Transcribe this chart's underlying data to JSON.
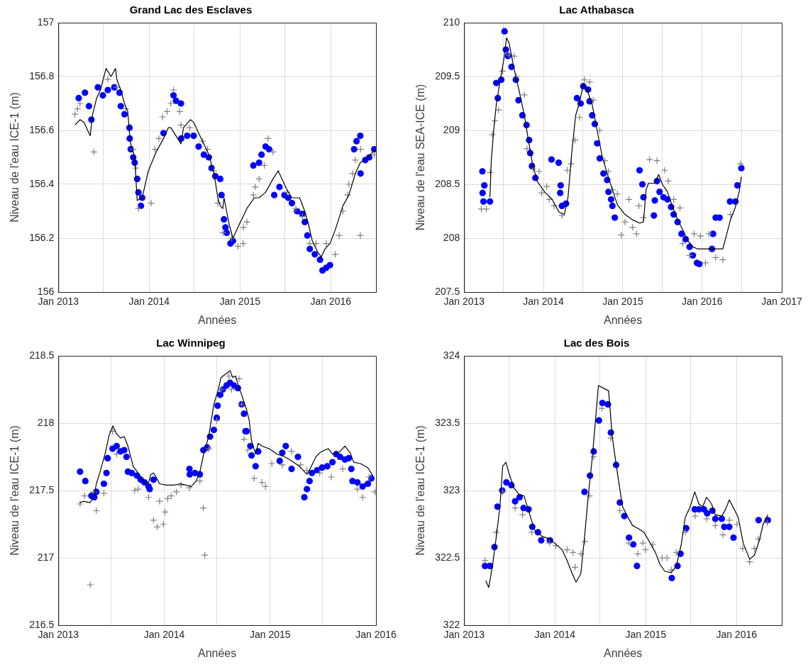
{
  "chart_data": [
    {
      "type": "scatter",
      "title": "Grand Lac des Esclaves",
      "xlabel": "Années",
      "ylabel": "Niveau de l'eau ICE-1 (m)",
      "grid": true,
      "xlim": [
        "2013-01-01",
        "2016-07-01"
      ],
      "xticks": [
        {
          "value": "2013-01-01",
          "label": "Jan 2013"
        },
        {
          "value": "2013-07-01",
          "label": null
        },
        {
          "value": "2014-01-01",
          "label": "Jan 2014"
        },
        {
          "value": "2014-07-01",
          "label": null
        },
        {
          "value": "2015-01-01",
          "label": "Jan 2015"
        },
        {
          "value": "2015-07-01",
          "label": null
        },
        {
          "value": "2016-01-01",
          "label": "Jan 2016"
        },
        {
          "value": "2016-07-01",
          "label": null
        }
      ],
      "ylim": [
        156,
        157
      ],
      "yticks": [
        156,
        156.2,
        156.4,
        156.6,
        156.8,
        157
      ],
      "series": [
        {
          "type": "line",
          "color": "#000000",
          "marker": "none",
          "x": [
            "2013-03-09",
            "2013-03-29",
            "2013-04-14",
            "2013-05-09",
            "2013-05-19",
            "2013-06-04",
            "2013-06-19",
            "2013-07-12",
            "2013-08-01",
            "2013-08-19",
            "2013-08-24",
            "2013-09-09",
            "2013-09-24",
            "2013-10-07",
            "2013-10-14",
            "2013-10-19",
            "2013-11-04",
            "2013-11-14",
            "2013-12-04",
            "2013-12-29",
            "2014-01-29",
            "2014-02-28",
            "2014-03-19",
            "2014-03-29",
            "2014-04-19",
            "2014-05-09",
            "2014-05-19",
            "2014-06-16",
            "2014-06-29",
            "2014-07-19",
            "2014-08-09",
            "2014-08-29",
            "2014-09-19",
            "2014-10-04",
            "2014-10-14",
            "2014-10-24",
            "2014-10-29",
            "2014-11-19",
            "2014-12-04",
            "2014-12-29",
            "2015-01-29",
            "2015-02-28",
            "2015-03-19",
            "2015-04-14",
            "2015-05-14",
            "2015-06-04",
            "2015-06-19",
            "2015-07-09",
            "2015-07-29",
            "2015-08-29",
            "2015-09-19",
            "2015-10-04",
            "2015-10-19",
            "2015-11-09",
            "2015-11-24",
            "2015-12-09",
            "2015-12-29",
            "2016-01-19",
            "2016-02-19",
            "2016-03-14",
            "2016-04-09",
            "2016-04-29",
            "2016-05-29",
            "2016-06-29"
          ],
          "values": [
            156.62,
            156.64,
            156.63,
            156.58,
            156.66,
            156.72,
            156.75,
            156.83,
            156.8,
            156.83,
            156.79,
            156.75,
            156.7,
            156.67,
            156.59,
            156.55,
            156.5,
            156.34,
            156.35,
            156.45,
            156.52,
            156.57,
            156.61,
            156.61,
            156.58,
            156.55,
            156.61,
            156.64,
            156.63,
            156.59,
            156.55,
            156.51,
            156.44,
            156.35,
            156.32,
            156.31,
            156.35,
            156.25,
            156.2,
            156.25,
            156.31,
            156.35,
            156.35,
            156.37,
            156.42,
            156.45,
            156.42,
            156.38,
            156.35,
            156.35,
            156.3,
            156.25,
            156.19,
            156.15,
            156.13,
            156.16,
            156.18,
            156.23,
            156.32,
            156.36,
            156.44,
            156.48,
            156.5,
            156.53
          ]
        },
        {
          "type": "scatter",
          "color": "#0000ff",
          "marker": "circle",
          "x": [
            "2013-03-24",
            "2013-04-18",
            "2013-05-04",
            "2013-05-14",
            "2013-06-09",
            "2013-06-29",
            "2013-07-19",
            "2013-08-14",
            "2013-09-04",
            "2013-09-09",
            "2013-09-24",
            "2013-10-14",
            "2013-10-15",
            "2013-10-19",
            "2013-10-29",
            "2013-11-04",
            "2013-11-14",
            "2013-11-19",
            "2013-11-29",
            "2013-12-04",
            "2014-02-28",
            "2014-04-09",
            "2014-04-19",
            "2014-05-09",
            "2014-05-10",
            "2014-06-03",
            "2014-06-29",
            "2014-07-19",
            "2014-08-09",
            "2014-08-29",
            "2014-09-09",
            "2014-09-24",
            "2014-10-14",
            "2014-10-19",
            "2014-10-29",
            "2014-11-04",
            "2014-11-09",
            "2014-11-24",
            "2014-12-04",
            "2015-02-24",
            "2015-03-19",
            "2015-03-29",
            "2015-04-14",
            "2015-04-28",
            "2015-05-19",
            "2015-06-09",
            "2015-06-29",
            "2015-07-14",
            "2015-07-29",
            "2015-08-19",
            "2015-09-09",
            "2015-09-19",
            "2015-09-29",
            "2015-10-09",
            "2015-10-29",
            "2015-11-19",
            "2015-11-29",
            "2015-12-14",
            "2015-12-29",
            "2016-04-04",
            "2016-04-14",
            "2016-04-29",
            "2016-04-30",
            "2016-05-19",
            "2016-06-04",
            "2016-06-24"
          ],
          "values": [
            156.72,
            156.74,
            156.69,
            156.64,
            156.76,
            156.73,
            156.75,
            156.76,
            156.74,
            156.69,
            156.66,
            156.61,
            156.57,
            156.53,
            156.5,
            156.48,
            156.42,
            156.37,
            156.32,
            156.35,
            156.59,
            156.73,
            156.71,
            156.7,
            156.57,
            156.58,
            156.58,
            156.54,
            156.51,
            156.5,
            156.46,
            156.43,
            156.42,
            156.36,
            156.27,
            156.24,
            156.22,
            156.18,
            156.19,
            156.47,
            156.48,
            156.51,
            156.54,
            156.53,
            156.36,
            156.39,
            156.36,
            156.35,
            156.33,
            156.3,
            156.29,
            156.26,
            156.21,
            156.16,
            156.14,
            156.12,
            156.08,
            156.09,
            156.1,
            156.53,
            156.56,
            156.58,
            156.44,
            156.49,
            156.5,
            156.53
          ]
        },
        {
          "type": "scatter",
          "color": "#808080",
          "marker": "cross",
          "x": [
            "2013-03-09",
            "2013-03-19",
            "2013-03-29",
            "2013-05-24",
            "2013-07-19",
            "2013-08-24",
            "2013-09-29",
            "2013-10-29",
            "2013-11-09",
            "2013-11-19",
            "2014-01-09",
            "2014-01-24",
            "2014-02-09",
            "2014-02-24",
            "2014-03-14",
            "2014-03-29",
            "2014-04-09",
            "2014-05-04",
            "2014-05-09",
            "2014-06-13",
            "2014-08-03",
            "2014-08-24",
            "2014-09-19",
            "2014-10-04",
            "2014-10-24",
            "2014-11-29",
            "2014-12-24",
            "2015-01-14",
            "2015-01-15",
            "2015-01-29",
            "2015-02-24",
            "2015-03-03",
            "2015-03-19",
            "2015-04-09",
            "2015-04-24",
            "2015-05-14",
            "2015-07-09",
            "2015-08-14",
            "2015-09-09",
            "2015-10-09",
            "2015-11-03",
            "2015-12-14",
            "2016-01-19",
            "2016-02-04",
            "2016-02-19",
            "2016-03-09",
            "2016-03-14",
            "2016-03-29",
            "2016-04-09",
            "2016-04-29",
            "2016-04-30",
            "2016-06-24"
          ],
          "values": [
            156.66,
            156.68,
            156.7,
            156.52,
            156.79,
            156.76,
            156.68,
            156.53,
            156.46,
            156.31,
            156.33,
            156.53,
            156.57,
            156.65,
            156.67,
            156.7,
            156.75,
            156.67,
            156.62,
            156.61,
            156.56,
            156.53,
            156.45,
            156.33,
            156.22,
            156.2,
            156.17,
            156.18,
            156.24,
            156.26,
            156.36,
            156.39,
            156.42,
            156.47,
            156.57,
            156.52,
            156.37,
            156.31,
            156.28,
            156.18,
            156.18,
            156.18,
            156.14,
            156.21,
            156.3,
            156.36,
            156.4,
            156.44,
            156.49,
            156.21,
            156.53,
            156.51
          ]
        }
      ]
    },
    {
      "type": "scatter",
      "title": "Lac Athabasca",
      "xlabel": "Années",
      "ylabel": "Niveau de l'eau SEA-ICE (m)",
      "grid": true,
      "xlim": [
        "2013-01-01",
        "2017-01-01"
      ],
      "xticks": [
        {
          "value": "2013-01-01",
          "label": "Jan 2013"
        },
        {
          "value": "2013-07-01",
          "label": null
        },
        {
          "value": "2014-01-01",
          "label": "Jan 2014"
        },
        {
          "value": "2014-07-01",
          "label": null
        },
        {
          "value": "2015-01-01",
          "label": "Jan 2015"
        },
        {
          "value": "2015-07-01",
          "label": null
        },
        {
          "value": "2016-01-01",
          "label": "Jan 2016"
        },
        {
          "value": "2016-07-01",
          "label": null
        },
        {
          "value": "2017-01-01",
          "label": "Jan 2017"
        }
      ],
      "ylim": [
        207.5,
        210
      ],
      "yticks": [
        207.5,
        208,
        208.5,
        209,
        209.5,
        210
      ],
      "series": [
        {
          "type": "line",
          "color": "#000000",
          "marker": "none",
          "x": [
            "2013-04-30",
            "2013-05-06",
            "2013-05-17",
            "2013-05-29",
            "2013-06-16",
            "2013-07-03",
            "2013-07-15",
            "2013-07-27",
            "2013-08-19",
            "2013-09-12",
            "2013-10-05",
            "2013-10-22",
            "2013-11-09",
            "2013-12-02",
            "2014-01-06",
            "2014-02-10",
            "2014-03-14",
            "2014-04-07",
            "2014-04-24",
            "2014-05-11",
            "2014-05-29",
            "2014-06-16",
            "2014-07-03",
            "2014-07-20",
            "2014-08-13",
            "2014-09-05",
            "2014-09-28",
            "2014-10-21",
            "2014-11-14",
            "2014-12-07",
            "2015-01-11",
            "2015-02-15",
            "2015-03-19",
            "2015-04-06",
            "2015-04-18",
            "2015-04-29",
            "2015-05-28",
            "2015-06-15",
            "2015-07-02",
            "2015-07-25",
            "2015-08-18",
            "2015-09-10",
            "2015-10-03",
            "2015-10-26",
            "2015-11-19",
            "2015-12-11",
            "2016-01-27",
            "2016-04-05",
            "2016-04-22",
            "2016-05-10",
            "2016-06-02",
            "2016-06-19",
            "2016-06-29"
          ],
          "values": [
            208.38,
            208.72,
            209.0,
            209.24,
            209.47,
            209.66,
            209.86,
            209.81,
            209.57,
            209.36,
            209.14,
            208.93,
            208.72,
            208.53,
            208.43,
            208.36,
            208.24,
            208.22,
            208.38,
            208.79,
            209.14,
            209.26,
            209.43,
            209.38,
            209.24,
            209.0,
            208.76,
            208.6,
            208.45,
            208.31,
            208.22,
            208.17,
            208.14,
            208.15,
            208.45,
            208.51,
            208.51,
            208.59,
            208.5,
            208.43,
            208.29,
            208.17,
            208.08,
            207.98,
            207.92,
            207.9,
            207.9,
            207.9,
            208.03,
            208.17,
            208.29,
            208.43,
            208.57
          ]
        },
        {
          "type": "scatter",
          "color": "#0000ff",
          "marker": "circle",
          "x": [
            "2013-03-26",
            "2013-03-27",
            "2013-04-04",
            "2013-03-31",
            "2013-04-30",
            "2013-05-29",
            "2013-06-05",
            "2013-06-21",
            "2013-07-06",
            "2013-07-12",
            "2013-07-22",
            "2013-08-07",
            "2013-08-27",
            "2013-09-08",
            "2013-09-26",
            "2013-10-15",
            "2013-10-27",
            "2013-11-01",
            "2013-11-09",
            "2013-11-25",
            "2014-02-07",
            "2014-03-12",
            "2014-03-21",
            "2014-03-19",
            "2014-03-27",
            "2014-04-15",
            "2014-06-04",
            "2014-06-21",
            "2014-07-03",
            "2014-07-25",
            "2014-08-01",
            "2014-08-13",
            "2014-08-25",
            "2014-09-05",
            "2014-09-17",
            "2014-10-04",
            "2014-10-21",
            "2014-10-27",
            "2014-11-08",
            "2014-11-14",
            "2014-11-25",
            "2015-03-19",
            "2015-04-01",
            "2015-04-06",
            "2015-05-24",
            "2015-05-28",
            "2015-06-07",
            "2015-06-19",
            "2015-07-07",
            "2015-07-25",
            "2015-08-11",
            "2015-08-23",
            "2015-09-10",
            "2015-09-28",
            "2015-10-17",
            "2015-11-04",
            "2015-11-19",
            "2015-12-08",
            "2015-12-19",
            "2016-02-15",
            "2016-02-20",
            "2016-03-03",
            "2016-03-21",
            "2016-05-08",
            "2016-06-02",
            "2016-06-11",
            "2016-06-29"
          ],
          "values": [
            208.62,
            208.42,
            208.49,
            208.34,
            208.34,
            209.44,
            209.3,
            209.47,
            209.92,
            209.75,
            209.69,
            209.59,
            209.47,
            209.28,
            209.14,
            209.05,
            208.91,
            208.79,
            208.67,
            208.56,
            208.73,
            208.7,
            208.49,
            208.42,
            208.3,
            208.32,
            209.3,
            209.25,
            209.41,
            209.38,
            209.27,
            209.14,
            209.06,
            208.88,
            208.74,
            208.6,
            208.54,
            208.43,
            208.36,
            208.3,
            208.19,
            208.63,
            208.5,
            208.38,
            208.21,
            208.35,
            208.53,
            208.43,
            208.38,
            208.36,
            208.29,
            208.22,
            208.15,
            208.04,
            207.99,
            207.92,
            207.84,
            207.77,
            207.76,
            207.9,
            208.04,
            208.19,
            208.19,
            208.34,
            208.34,
            208.49,
            208.65
          ]
        },
        {
          "type": "scatter",
          "color": "#808080",
          "marker": "cross",
          "x": [
            "2013-03-21",
            "2013-04-13",
            "2013-05-01",
            "2013-05-11",
            "2013-05-22",
            "2013-06-08",
            "2013-06-27",
            "2013-07-27",
            "2013-08-19",
            "2013-08-30",
            "2013-10-05",
            "2013-10-17",
            "2013-11-14",
            "2013-12-12",
            "2013-12-24",
            "2014-01-16",
            "2014-01-28",
            "2014-02-19",
            "2014-03-27",
            "2014-04-20",
            "2014-05-08",
            "2014-05-26",
            "2014-06-16",
            "2014-07-08",
            "2014-08-01",
            "2014-08-18",
            "2014-09-17",
            "2014-10-10",
            "2014-10-27",
            "2014-11-14",
            "2014-12-07",
            "2014-12-25",
            "2015-01-11",
            "2015-01-29",
            "2015-02-15",
            "2015-03-05",
            "2015-03-16",
            "2015-04-06",
            "2015-05-04",
            "2015-06-07",
            "2015-07-12",
            "2015-07-29",
            "2015-08-23",
            "2015-09-21",
            "2015-10-03",
            "2015-11-04",
            "2015-11-25",
            "2015-12-24",
            "2016-01-16",
            "2016-02-01",
            "2016-03-03",
            "2016-04-05",
            "2016-05-10",
            "2016-06-25"
          ],
          "values": [
            208.27,
            208.27,
            208.61,
            208.96,
            209.09,
            209.19,
            209.55,
            209.7,
            209.69,
            209.5,
            209.33,
            208.83,
            208.64,
            208.62,
            208.42,
            208.48,
            208.36,
            208.3,
            208.21,
            208.63,
            208.69,
            208.91,
            209.12,
            209.47,
            209.45,
            209.28,
            209.0,
            208.72,
            208.62,
            208.45,
            208.41,
            208.03,
            208.15,
            208.36,
            208.1,
            208.04,
            208.3,
            208.19,
            208.73,
            208.72,
            208.63,
            208.53,
            208.36,
            208.28,
            207.95,
            207.84,
            208.04,
            208.02,
            207.77,
            208.04,
            207.82,
            207.8,
            208.22,
            208.69
          ]
        }
      ]
    },
    {
      "type": "scatter",
      "title": "Lac Winnipeg",
      "xlabel": "Années",
      "ylabel": "Niveau de l'eau ICE-1 (m)",
      "grid": true,
      "xlim": [
        "2013-01-01",
        "2016-01-01"
      ],
      "xticks": [
        {
          "value": "2013-01-01",
          "label": "Jan 2013"
        },
        {
          "value": "2013-07-01",
          "label": null
        },
        {
          "value": "2014-01-01",
          "label": "Jan 2014"
        },
        {
          "value": "2014-07-01",
          "label": null
        },
        {
          "value": "2015-01-01",
          "label": "Jan 2015"
        },
        {
          "value": "2015-07-01",
          "label": null
        },
        {
          "value": "2016-01-01",
          "label": "Jan 2016"
        }
      ],
      "ylim": [
        216.5,
        218.5
      ],
      "yticks": [
        216.5,
        217,
        217.5,
        218,
        218.5
      ],
      "series": [
        {
          "type": "line",
          "color": "#000000",
          "marker": "none",
          "x": [
            "2013-03-16",
            "2013-03-29",
            "2013-04-20",
            "2013-05-03",
            "2013-05-12",
            "2013-05-25",
            "2013-06-12",
            "2013-06-25",
            "2013-07-08",
            "2013-07-21",
            "2013-08-03",
            "2013-08-16",
            "2013-08-29",
            "2013-09-16",
            "2013-10-03",
            "2013-10-16",
            "2013-10-29",
            "2013-11-08",
            "2013-11-16",
            "2013-11-25",
            "2013-12-04",
            "2013-12-16",
            "2014-01-08",
            "2014-02-03",
            "2014-02-27",
            "2014-04-04",
            "2014-04-21",
            "2014-05-04",
            "2014-05-16",
            "2014-06-04",
            "2014-06-21",
            "2014-07-04",
            "2014-07-16",
            "2014-08-04",
            "2014-08-16",
            "2014-08-25",
            "2014-09-04",
            "2014-09-12",
            "2014-09-25",
            "2014-10-12",
            "2014-10-21",
            "2014-10-29",
            "2014-11-12",
            "2014-11-21",
            "2014-12-04",
            "2014-12-29",
            "2015-01-25",
            "2015-02-21",
            "2015-03-16",
            "2015-04-12",
            "2015-05-08",
            "2015-05-21",
            "2015-06-08",
            "2015-06-21",
            "2015-07-08",
            "2015-07-21",
            "2015-08-04",
            "2015-08-25",
            "2015-09-16",
            "2015-10-04",
            "2015-10-16",
            "2015-11-08",
            "2015-12-04",
            "2015-12-21"
          ],
          "values": [
            217.41,
            217.42,
            217.41,
            217.45,
            217.55,
            217.64,
            217.78,
            217.91,
            217.98,
            217.92,
            217.89,
            217.9,
            217.83,
            217.68,
            217.63,
            217.59,
            217.55,
            217.56,
            217.62,
            217.63,
            217.6,
            217.55,
            217.54,
            217.54,
            217.55,
            217.53,
            217.57,
            217.64,
            217.76,
            217.91,
            218.14,
            218.23,
            218.34,
            218.37,
            218.39,
            218.34,
            218.35,
            218.29,
            218.21,
            218.1,
            218.02,
            217.87,
            217.77,
            217.85,
            217.83,
            217.81,
            217.77,
            217.75,
            217.72,
            217.68,
            217.62,
            217.67,
            217.75,
            217.78,
            217.8,
            217.81,
            217.77,
            217.78,
            217.83,
            217.78,
            217.71,
            217.7,
            217.67,
            217.61
          ]
        },
        {
          "type": "scatter",
          "color": "#0000ff",
          "marker": "circle",
          "x": [
            "2013-03-17",
            "2013-04-04",
            "2013-04-25",
            "2013-05-05",
            "2013-05-12",
            "2013-06-07",
            "2013-06-16",
            "2013-06-20",
            "2013-07-07",
            "2013-07-21",
            "2013-08-03",
            "2013-08-16",
            "2013-08-24",
            "2013-08-29",
            "2013-09-11",
            "2013-09-29",
            "2013-10-12",
            "2013-10-25",
            "2013-11-08",
            "2013-11-12",
            "2013-11-25",
            "2014-03-29",
            "2014-03-30",
            "2014-04-17",
            "2014-05-04",
            "2014-05-16",
            "2014-05-29",
            "2014-06-08",
            "2014-06-21",
            "2014-07-01",
            "2014-07-04",
            "2014-07-13",
            "2014-07-22",
            "2014-08-04",
            "2014-08-16",
            "2014-08-29",
            "2014-09-12",
            "2014-09-25",
            "2014-10-03",
            "2014-10-08",
            "2014-10-12",
            "2014-10-25",
            "2014-10-29",
            "2014-11-12",
            "2014-11-21",
            "2015-02-03",
            "2015-02-12",
            "2015-02-24",
            "2015-03-16",
            "2015-04-07",
            "2015-04-29",
            "2015-05-08",
            "2015-05-17",
            "2015-05-25",
            "2015-06-12",
            "2015-06-29",
            "2015-07-17",
            "2015-08-04",
            "2015-08-17",
            "2015-08-30",
            "2015-09-16",
            "2015-09-29",
            "2015-10-08",
            "2015-10-12",
            "2015-10-29",
            "2015-11-16",
            "2015-12-04",
            "2015-12-16"
          ],
          "values": [
            217.64,
            217.57,
            217.46,
            217.45,
            217.49,
            217.55,
            217.63,
            217.74,
            217.81,
            217.83,
            217.79,
            217.8,
            217.75,
            217.64,
            217.63,
            217.61,
            217.58,
            217.56,
            217.53,
            217.51,
            217.58,
            217.66,
            217.62,
            217.63,
            217.62,
            217.8,
            217.82,
            217.9,
            217.95,
            218.04,
            218.13,
            218.21,
            218.25,
            218.28,
            218.3,
            218.28,
            218.26,
            218.14,
            218.07,
            217.94,
            217.94,
            217.83,
            217.76,
            217.68,
            217.79,
            217.72,
            217.78,
            217.83,
            217.66,
            217.75,
            217.45,
            217.51,
            217.57,
            217.63,
            217.65,
            217.67,
            217.68,
            217.71,
            217.77,
            217.75,
            217.73,
            217.74,
            217.66,
            217.57,
            217.56,
            217.53,
            217.55,
            217.59
          ]
        },
        {
          "type": "scatter",
          "color": "#808080",
          "marker": "cross",
          "x": [
            "2013-03-17",
            "2013-04-01",
            "2013-04-21",
            "2013-05-03",
            "2013-05-12",
            "2013-06-07",
            "2013-07-07",
            "2013-07-21",
            "2013-09-21",
            "2013-10-03",
            "2013-11-08",
            "2013-11-25",
            "2013-12-08",
            "2013-12-16",
            "2013-12-29",
            "2014-01-04",
            "2014-01-13",
            "2014-01-25",
            "2014-02-12",
            "2014-02-28",
            "2014-03-29",
            "2014-05-04",
            "2014-05-16",
            "2014-05-21",
            "2014-06-04",
            "2014-07-01",
            "2014-07-16",
            "2014-08-12",
            "2014-08-21",
            "2014-09-16",
            "2014-09-25",
            "2014-10-03",
            "2014-10-16",
            "2014-11-07",
            "2014-12-04",
            "2014-12-16",
            "2015-01-07",
            "2015-02-12",
            "2015-03-16",
            "2015-04-16",
            "2015-05-08",
            "2015-06-21",
            "2015-07-31",
            "2015-09-08",
            "2015-10-29",
            "2015-11-16",
            "2015-12-08",
            "2015-12-29"
          ],
          "values": [
            217.4,
            217.46,
            216.8,
            217.49,
            217.35,
            217.48,
            217.94,
            217.77,
            217.5,
            217.51,
            217.45,
            217.28,
            217.23,
            217.42,
            217.25,
            217.34,
            217.44,
            217.46,
            217.49,
            217.54,
            217.52,
            217.57,
            217.37,
            217.02,
            217.81,
            218.02,
            218.25,
            218.35,
            218.25,
            218.33,
            218.14,
            217.88,
            217.8,
            217.59,
            217.56,
            217.53,
            217.7,
            217.69,
            217.79,
            217.69,
            217.65,
            217.63,
            217.6,
            217.66,
            217.51,
            217.45,
            217.6,
            217.49
          ]
        }
      ]
    },
    {
      "type": "scatter",
      "title": "Lac des Bois",
      "xlabel": "Années",
      "ylabel": "Niveau de l'eau ICE-1 (m)",
      "grid": true,
      "xlim": [
        "2013-01-01",
        "2016-07-01"
      ],
      "xticks": [
        {
          "value": "2013-01-01",
          "label": "Jan 2013"
        },
        {
          "value": "2013-07-01",
          "label": null
        },
        {
          "value": "2014-01-01",
          "label": "Jan 2014"
        },
        {
          "value": "2014-07-01",
          "label": null
        },
        {
          "value": "2015-01-01",
          "label": "Jan 2015"
        },
        {
          "value": "2015-07-01",
          "label": null
        },
        {
          "value": "2016-01-01",
          "label": "Jan 2016"
        },
        {
          "value": "2016-07-01",
          "label": null
        }
      ],
      "ylim": [
        322,
        324
      ],
      "yticks": [
        322,
        322.5,
        323,
        323.5,
        324
      ],
      "series": [
        {
          "type": "line",
          "color": "#000000",
          "marker": "none",
          "x": [
            "2013-03-29",
            "2013-04-10",
            "2013-04-25",
            "2013-05-10",
            "2013-05-25",
            "2013-06-05",
            "2013-06-18",
            "2013-06-30",
            "2013-07-20",
            "2013-08-10",
            "2013-08-30",
            "2013-09-19",
            "2013-10-10",
            "2013-11-10",
            "2013-12-10",
            "2013-12-30",
            "2014-01-30",
            "2014-02-19",
            "2014-03-10",
            "2014-03-27",
            "2014-04-15",
            "2014-04-30",
            "2014-05-15",
            "2014-05-30",
            "2014-06-15",
            "2014-06-25",
            "2014-07-15",
            "2014-08-05",
            "2014-08-20",
            "2014-09-10",
            "2014-09-30",
            "2014-10-25",
            "2014-11-09",
            "2014-11-30",
            "2014-12-25",
            "2015-01-19",
            "2015-02-09",
            "2015-02-28",
            "2015-03-19",
            "2015-04-14",
            "2015-05-04",
            "2015-05-24",
            "2015-06-09",
            "2015-06-29",
            "2015-07-17",
            "2015-08-03",
            "2015-08-18",
            "2015-09-03",
            "2015-09-23",
            "2015-10-08",
            "2015-11-03",
            "2015-11-18",
            "2015-12-03",
            "2015-12-23",
            "2016-01-08",
            "2016-01-28",
            "2016-02-23",
            "2016-03-13",
            "2016-04-02",
            "2016-04-17",
            "2016-05-06"
          ],
          "values": [
            322.33,
            322.28,
            322.44,
            322.65,
            322.88,
            323.18,
            323.21,
            323.13,
            323.02,
            322.97,
            322.96,
            322.84,
            322.71,
            322.66,
            322.64,
            322.61,
            322.56,
            322.48,
            322.39,
            322.32,
            322.38,
            322.65,
            322.96,
            323.22,
            323.56,
            323.78,
            323.76,
            323.74,
            323.39,
            323.12,
            322.88,
            322.79,
            322.74,
            322.72,
            322.69,
            322.61,
            322.54,
            322.45,
            322.4,
            322.39,
            322.44,
            322.6,
            322.8,
            322.88,
            322.99,
            322.9,
            322.88,
            322.95,
            322.9,
            322.82,
            322.81,
            322.86,
            322.93,
            322.86,
            322.8,
            322.61,
            322.49,
            322.52,
            322.63,
            322.75,
            322.82
          ]
        },
        {
          "type": "scatter",
          "color": "#0000ff",
          "marker": "circle",
          "x": [
            "2013-03-26",
            "2013-04-15",
            "2013-05-03",
            "2013-05-15",
            "2013-06-03",
            "2013-06-20",
            "2013-07-10",
            "2013-07-25",
            "2013-08-12",
            "2013-08-28",
            "2013-09-17",
            "2013-10-02",
            "2013-10-25",
            "2013-11-07",
            "2013-12-12",
            "2014-04-30",
            "2014-05-22",
            "2014-06-06",
            "2014-06-27",
            "2014-07-11",
            "2014-08-02",
            "2014-08-14",
            "2014-09-04",
            "2014-09-19",
            "2014-10-07",
            "2014-10-26",
            "2014-11-12",
            "2014-11-27",
            "2015-04-16",
            "2015-05-09",
            "2015-05-21",
            "2015-06-13",
            "2015-07-17",
            "2015-08-03",
            "2015-08-23",
            "2015-09-05",
            "2015-09-26",
            "2015-10-08",
            "2015-11-03",
            "2015-11-13",
            "2015-12-03",
            "2015-12-20",
            "2016-03-30",
            "2016-05-06"
          ],
          "values": [
            322.44,
            322.44,
            322.58,
            322.88,
            323.0,
            323.06,
            323.04,
            322.92,
            322.95,
            322.87,
            322.86,
            322.73,
            322.69,
            322.63,
            322.63,
            322.99,
            323.11,
            323.29,
            323.52,
            323.65,
            323.64,
            323.43,
            323.19,
            322.91,
            322.81,
            322.65,
            322.6,
            322.44,
            322.35,
            322.44,
            322.53,
            322.72,
            322.86,
            322.86,
            322.86,
            322.83,
            322.85,
            322.79,
            322.79,
            322.73,
            322.73,
            322.65,
            322.78,
            322.78
          ]
        },
        {
          "type": "scatter",
          "color": "#808080",
          "marker": "cross",
          "x": [
            "2013-03-26",
            "2013-05-10",
            "2013-06-05",
            "2013-07-25",
            "2013-08-24",
            "2013-09-30",
            "2013-12-10",
            "2014-01-05",
            "2014-02-19",
            "2014-03-15",
            "2014-03-23",
            "2014-04-16",
            "2014-05-01",
            "2014-05-20",
            "2014-06-06",
            "2014-07-09",
            "2014-08-14",
            "2014-09-19",
            "2014-10-25",
            "2014-11-30",
            "2014-12-21",
            "2014-12-31",
            "2015-01-30",
            "2015-03-08",
            "2015-03-28",
            "2015-04-14",
            "2015-05-04",
            "2015-06-09",
            "2015-07-19",
            "2015-09-03",
            "2015-10-08",
            "2015-11-08",
            "2015-12-03",
            "2016-01-03",
            "2016-01-26",
            "2016-02-23",
            "2016-03-13",
            "2016-03-29",
            "2016-05-04"
          ],
          "values": [
            322.48,
            322.69,
            322.99,
            322.87,
            322.82,
            322.69,
            322.61,
            322.59,
            322.56,
            322.54,
            322.43,
            322.53,
            322.62,
            322.96,
            323.25,
            323.61,
            323.39,
            322.85,
            322.61,
            322.53,
            322.61,
            322.56,
            322.6,
            322.5,
            322.5,
            322.41,
            322.54,
            322.69,
            322.81,
            322.79,
            322.74,
            322.67,
            322.78,
            322.75,
            322.57,
            322.47,
            322.57,
            322.64,
            322.76
          ]
        }
      ]
    }
  ]
}
